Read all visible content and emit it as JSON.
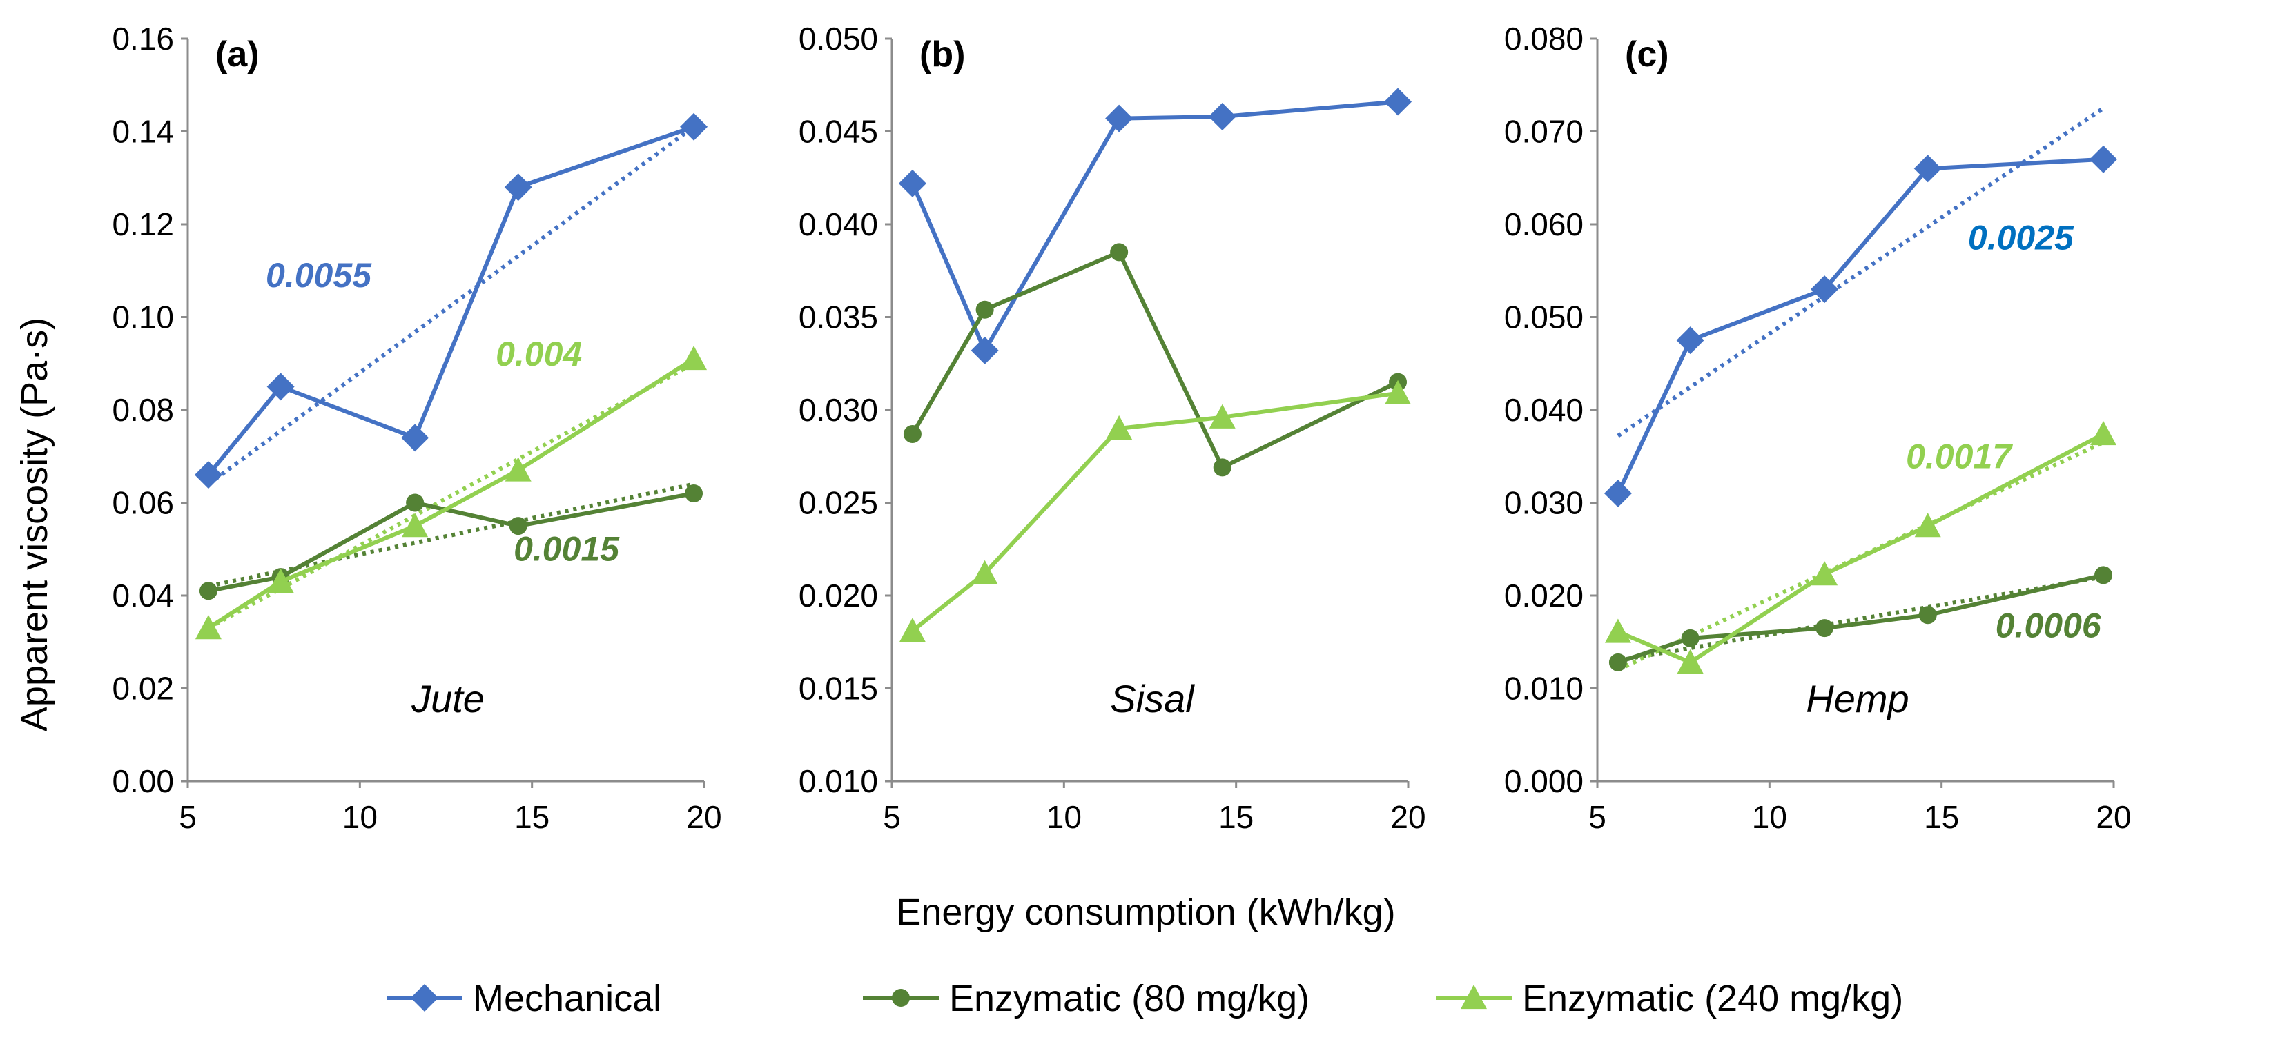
{
  "chart_data": {
    "type": "line",
    "xlabel": "Energy consumption (kWh/kg)",
    "ylabel": "Apparent viscosity (Pa·s)",
    "colors": {
      "mechanical": "#4472C4",
      "enzymatic80": "#548235",
      "enzymatic240": "#92D050",
      "slope_blue": "#0070C0"
    },
    "legend": [
      {
        "key": "mechanical",
        "label": "Mechanical",
        "marker": "diamond"
      },
      {
        "key": "enzymatic80",
        "label": "Enzymatic (80 mg/kg)",
        "marker": "circle"
      },
      {
        "key": "enzymatic240",
        "label": "Enzymatic (240 mg/kg)",
        "marker": "triangle"
      }
    ],
    "panels": [
      {
        "label": "(a)",
        "fiber": "Jute",
        "xlim": [
          5,
          20
        ],
        "xticks": [
          5,
          10,
          15,
          20
        ],
        "xtick_labels": [
          "5",
          "10",
          "15",
          "20"
        ],
        "ylim": [
          0,
          0.16
        ],
        "yticks": [
          0,
          0.02,
          0.04,
          0.06,
          0.08,
          0.1,
          0.12,
          0.14,
          0.16
        ],
        "ytick_labels": [
          "0.00",
          "0.02",
          "0.04",
          "0.06",
          "0.08",
          "0.10",
          "0.12",
          "0.14",
          "0.16"
        ],
        "series": [
          {
            "key": "mechanical",
            "name": "Mechanical",
            "x": [
              5.6,
              7.7,
              11.6,
              14.6,
              19.7
            ],
            "y": [
              0.066,
              0.085,
              0.074,
              0.128,
              0.141
            ],
            "trend": [
              [
                5.6,
                0.064
              ],
              [
                19.7,
                0.141
              ]
            ]
          },
          {
            "key": "enzymatic80",
            "name": "Enzymatic (80 mg/kg)",
            "x": [
              5.6,
              7.7,
              11.6,
              14.6,
              19.7
            ],
            "y": [
              0.041,
              0.044,
              0.06,
              0.055,
              0.062
            ],
            "trend": [
              [
                5.6,
                0.042
              ],
              [
                19.7,
                0.064
              ]
            ]
          },
          {
            "key": "enzymatic240",
            "name": "Enzymatic (240 mg/kg)",
            "x": [
              5.6,
              7.7,
              11.6,
              14.6,
              19.7
            ],
            "y": [
              0.033,
              0.043,
              0.055,
              0.067,
              0.091
            ],
            "trend": [
              [
                5.6,
                0.033
              ],
              [
                19.7,
                0.09
              ]
            ]
          }
        ],
        "slopes": [
          {
            "text": "0.0055",
            "color": "mechanical",
            "x": 8.8,
            "y": 0.1065
          },
          {
            "text": "0.004",
            "color": "enzymatic240",
            "x": 15.2,
            "y": 0.0895
          },
          {
            "text": "0.0015",
            "color": "enzymatic80",
            "x": 16.0,
            "y": 0.0475
          }
        ]
      },
      {
        "label": "(b)",
        "fiber": "Sisal",
        "xlim": [
          5,
          20
        ],
        "xticks": [
          5,
          10,
          15,
          20
        ],
        "xtick_labels": [
          "5",
          "10",
          "15",
          "20"
        ],
        "ylim": [
          0.01,
          0.05
        ],
        "yticks": [
          0.01,
          0.015,
          0.02,
          0.025,
          0.03,
          0.035,
          0.04,
          0.045,
          0.05
        ],
        "ytick_labels": [
          "0.010",
          "0.015",
          "0.020",
          "0.025",
          "0.030",
          "0.035",
          "0.040",
          "0.045",
          "0.050"
        ],
        "series": [
          {
            "key": "mechanical",
            "name": "Mechanical",
            "x": [
              5.6,
              7.7,
              11.6,
              14.6,
              19.7
            ],
            "y": [
              0.0422,
              0.0332,
              0.0457,
              0.0458,
              0.0466
            ]
          },
          {
            "key": "enzymatic80",
            "name": "Enzymatic (80 mg/kg)",
            "x": [
              5.6,
              7.7,
              11.6,
              14.6,
              19.7
            ],
            "y": [
              0.0287,
              0.0354,
              0.0385,
              0.0269,
              0.0315
            ]
          },
          {
            "key": "enzymatic240",
            "name": "Enzymatic (240 mg/kg)",
            "x": [
              5.6,
              7.7,
              11.6,
              14.6,
              19.7
            ],
            "y": [
              0.0181,
              0.0212,
              0.029,
              0.0296,
              0.0309
            ]
          }
        ],
        "slopes": []
      },
      {
        "label": "(c)",
        "fiber": "Hemp",
        "xlim": [
          5,
          20
        ],
        "xticks": [
          5,
          10,
          15,
          20
        ],
        "xtick_labels": [
          "5",
          "10",
          "15",
          "20"
        ],
        "ylim": [
          0,
          0.08
        ],
        "yticks": [
          0,
          0.01,
          0.02,
          0.03,
          0.04,
          0.05,
          0.06,
          0.07,
          0.08
        ],
        "ytick_labels": [
          "0.000",
          "0.010",
          "0.020",
          "0.030",
          "0.040",
          "0.050",
          "0.060",
          "0.070",
          "0.080"
        ],
        "series": [
          {
            "key": "mechanical",
            "name": "Mechanical",
            "x": [
              5.6,
              7.7,
              11.6,
              14.6,
              19.7
            ],
            "y": [
              0.031,
              0.0475,
              0.053,
              0.066,
              0.067
            ],
            "trend": [
              [
                5.6,
                0.0372
              ],
              [
                19.7,
                0.0725
              ]
            ]
          },
          {
            "key": "enzymatic80",
            "name": "Enzymatic (80 mg/kg)",
            "x": [
              5.6,
              7.7,
              11.6,
              14.6,
              19.7
            ],
            "y": [
              0.0128,
              0.0154,
              0.0165,
              0.0179,
              0.0222
            ],
            "trend": [
              [
                5.6,
                0.013
              ],
              [
                19.7,
                0.022
              ]
            ]
          },
          {
            "key": "enzymatic240",
            "name": "Enzymatic (240 mg/kg)",
            "x": [
              5.6,
              7.7,
              11.6,
              14.6,
              19.7
            ],
            "y": [
              0.0161,
              0.0128,
              0.0223,
              0.0275,
              0.0374
            ],
            "trend": [
              [
                5.6,
                0.012
              ],
              [
                19.7,
                0.0365
              ]
            ]
          }
        ],
        "slopes": [
          {
            "text": "0.0025",
            "color": "slope_blue",
            "x": 17.3,
            "y": 0.0573
          },
          {
            "text": "0.0017",
            "color": "enzymatic240",
            "x": 15.5,
            "y": 0.0337
          },
          {
            "text": "0.0006",
            "color": "enzymatic80",
            "x": 18.1,
            "y": 0.0155
          }
        ]
      }
    ]
  }
}
